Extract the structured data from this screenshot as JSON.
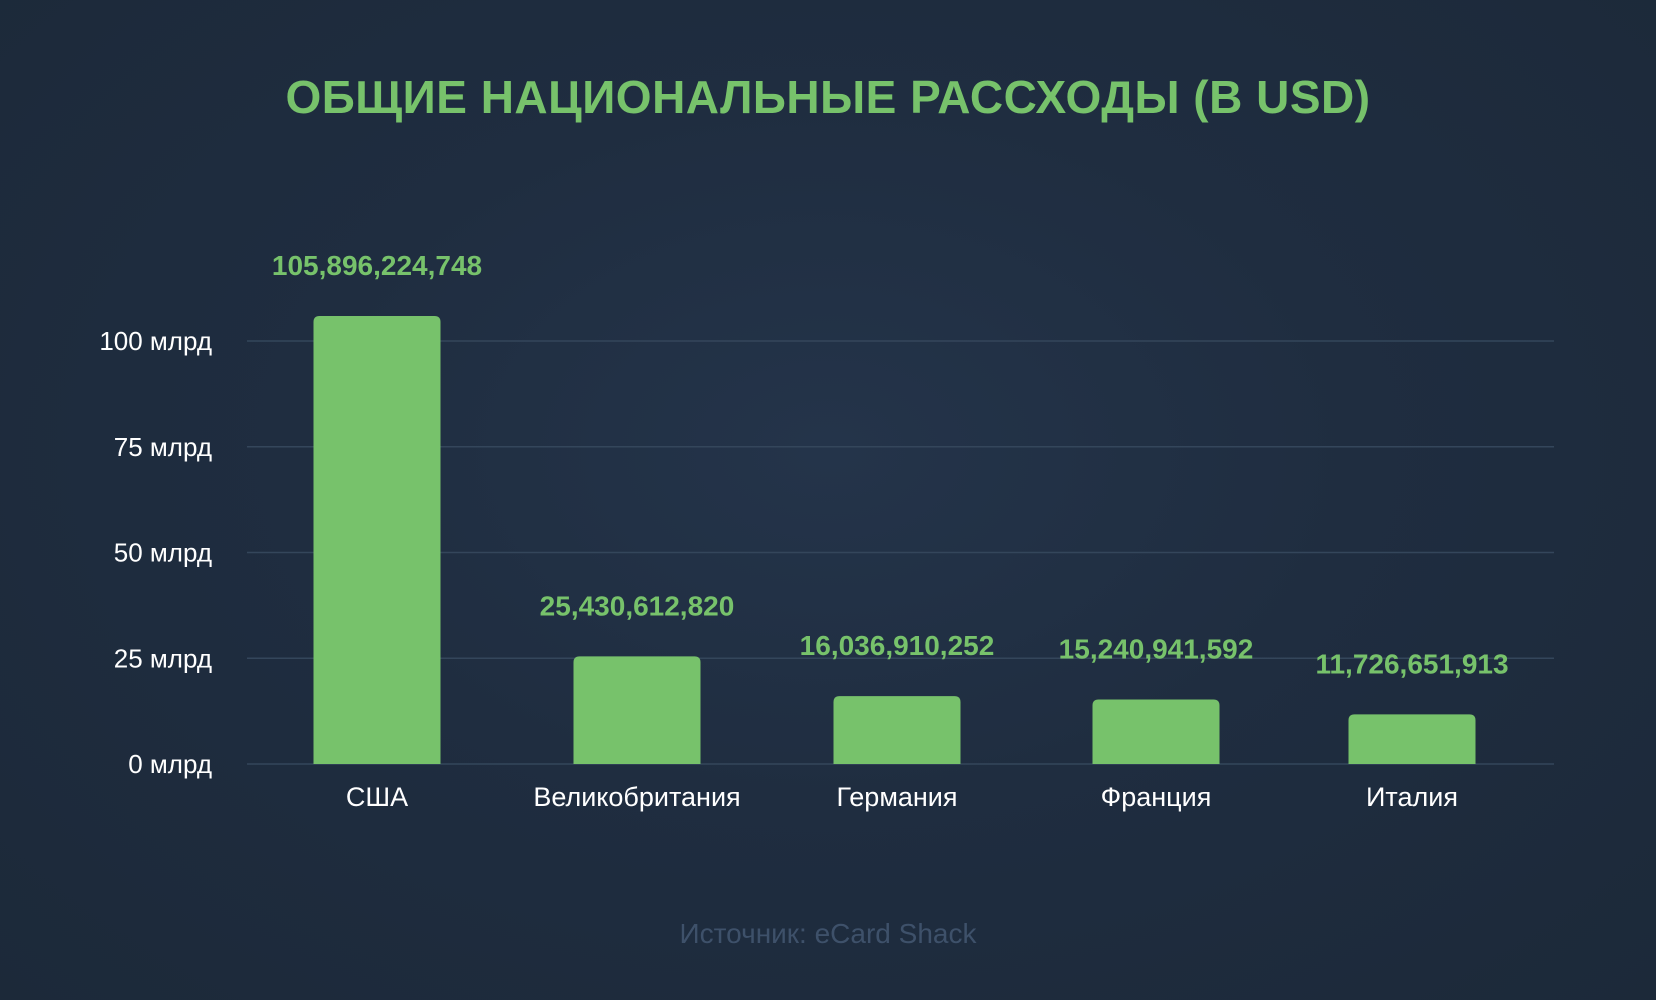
{
  "chart_data": {
    "type": "bar",
    "title": "ОБЩИЕ НАЦИОНАЛЬНЫЕ РАССХОДЫ (В USD)",
    "categories": [
      "США",
      "Великобритания",
      "Германия",
      "Франция",
      "Италия"
    ],
    "values": [
      105896224748,
      25430612820,
      16036910252,
      15240941592,
      11726651913
    ],
    "value_labels": [
      "105,896,224,748",
      "25,430,612,820",
      "16,036,910,252",
      "15,240,941,592",
      "11,726,651,913"
    ],
    "ylim": [
      0,
      100000000000
    ],
    "yticks": [
      0,
      25000000000,
      50000000000,
      75000000000,
      100000000000
    ],
    "ytick_labels": [
      "0 млрд",
      "25 млрд",
      "50 млрд",
      "75 млрд",
      "100 млрд"
    ],
    "xlabel": "",
    "ylabel": "",
    "grid": true,
    "bar_color": "#77c26b",
    "label_color": "#77c26b",
    "grid_color": "#34465b",
    "axis_text_color": "#ffffff"
  },
  "source": "Источник: eCard Shack",
  "colors": {
    "background": "#1f2d40",
    "source_text": "#3e516a"
  }
}
